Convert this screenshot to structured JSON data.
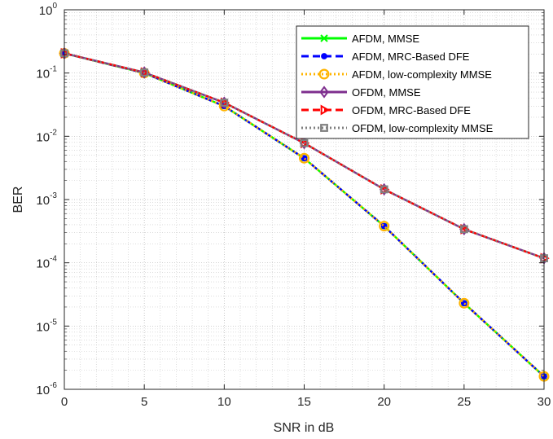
{
  "chart_data": {
    "type": "line",
    "xlabel": "SNR in dB",
    "ylabel": "BER",
    "y_scale": "log",
    "xlim": [
      0,
      30
    ],
    "ylim": [
      1e-06,
      1
    ],
    "x_ticks": [
      0,
      5,
      10,
      15,
      20,
      25,
      30
    ],
    "y_tick_labels": [
      {
        "base": "10",
        "exp": "-6",
        "value": 1e-06
      },
      {
        "base": "10",
        "exp": "-5",
        "value": 1e-05
      },
      {
        "base": "10",
        "exp": "-4",
        "value": 0.0001
      },
      {
        "base": "10",
        "exp": "-3",
        "value": 0.001
      },
      {
        "base": "10",
        "exp": "-2",
        "value": 0.01
      },
      {
        "base": "10",
        "exp": "-1",
        "value": 0.1
      },
      {
        "base": "10",
        "exp": "0",
        "value": 1
      }
    ],
    "grid": true,
    "minor_grid": true,
    "legend_position": "top-right",
    "x": [
      0,
      5,
      10,
      15,
      20,
      25,
      30
    ],
    "series": [
      {
        "name": "AFDM, MMSE",
        "color": "#00ff00",
        "dash": "solid",
        "marker": "x",
        "values": [
          0.205,
          0.1,
          0.03,
          0.0045,
          0.00038,
          2.3e-05,
          1.6e-06
        ]
      },
      {
        "name": "AFDM, MRC-Based DFE",
        "color": "#0000ff",
        "dash": "dash",
        "marker": "filled-circle",
        "values": [
          0.205,
          0.1,
          0.03,
          0.0045,
          0.00038,
          2.3e-05,
          1.6e-06
        ]
      },
      {
        "name": "AFDM, low-complexity MMSE",
        "color": "#ffb400",
        "dash": "dot",
        "marker": "open-circle",
        "values": [
          0.205,
          0.1,
          0.03,
          0.0045,
          0.00038,
          2.3e-05,
          1.6e-06
        ]
      },
      {
        "name": "OFDM,  MMSE",
        "color": "#7e2f8e",
        "dash": "solid",
        "marker": "diamond",
        "values": [
          0.205,
          0.102,
          0.034,
          0.0078,
          0.00145,
          0.00034,
          0.000118
        ]
      },
      {
        "name": "OFDM, MRC-Based DFE",
        "color": "#ff0000",
        "dash": "dash",
        "marker": "triangle-right",
        "values": [
          0.205,
          0.102,
          0.034,
          0.0078,
          0.00145,
          0.00034,
          0.000118
        ]
      },
      {
        "name": "OFDM, low-complexity MMSE",
        "color": "#808080",
        "dash": "dot",
        "marker": "square",
        "values": [
          0.205,
          0.102,
          0.034,
          0.0078,
          0.00145,
          0.00034,
          0.000118
        ]
      }
    ]
  }
}
